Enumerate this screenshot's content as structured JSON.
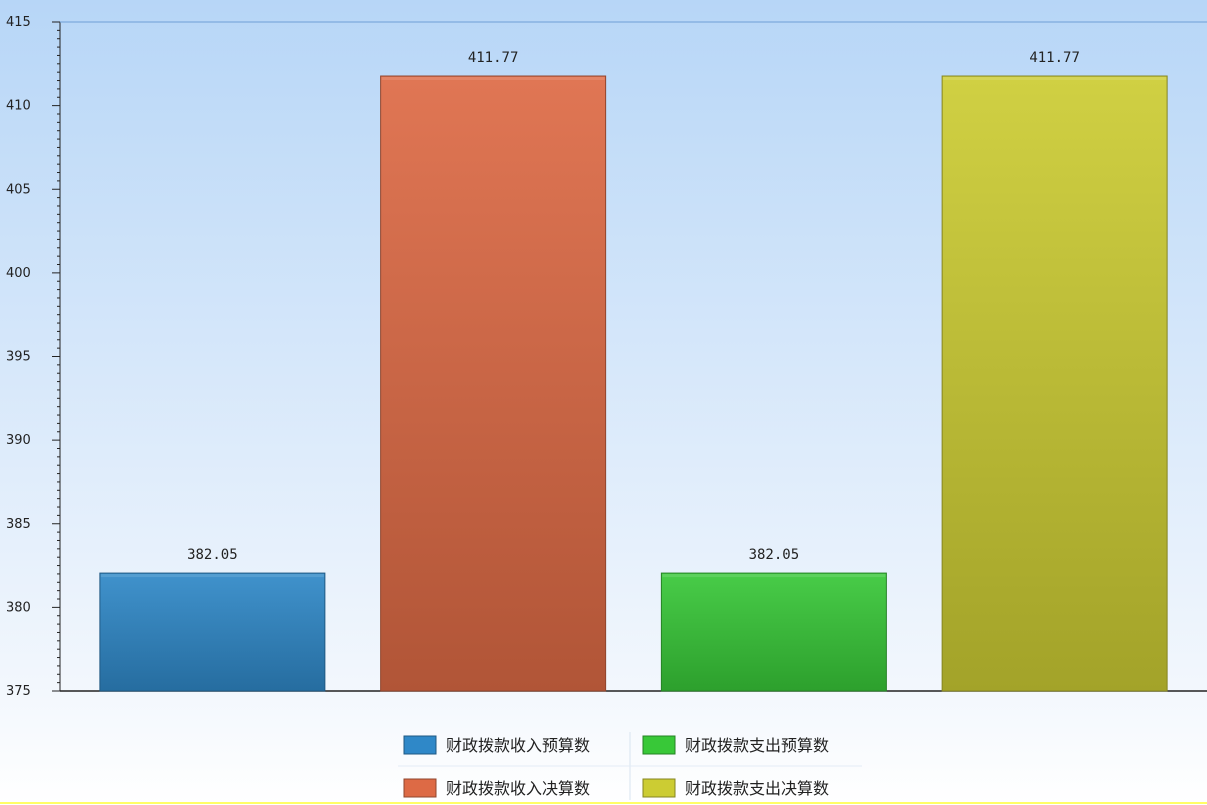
{
  "chart_data": {
    "type": "bar",
    "categories": [
      "财政拨款收入预算数",
      "财政拨款收入决算数",
      "财政拨款支出预算数",
      "财政拨款支出决算数"
    ],
    "values": [
      382.05,
      411.77,
      382.05,
      411.77
    ],
    "data_labels": [
      "382.05",
      "411.77",
      "382.05",
      "411.77"
    ],
    "colors": [
      "#2f88c8",
      "#dd6a45",
      "#38c838",
      "#cccc33"
    ],
    "ylim": [
      375,
      415
    ],
    "yticks": [
      375,
      380,
      385,
      390,
      395,
      400,
      405,
      410,
      415
    ],
    "grid": false,
    "legend": {
      "placement": "bottom-center",
      "entries": [
        "财政拨款收入预算数",
        "财政拨款支出预算数",
        "财政拨款收入决算数",
        "财政拨款支出决算数"
      ],
      "colors": [
        "#2f88c8",
        "#38c838",
        "#dd6a45",
        "#cccc33"
      ]
    },
    "title": "",
    "xlabel": "",
    "ylabel": ""
  }
}
